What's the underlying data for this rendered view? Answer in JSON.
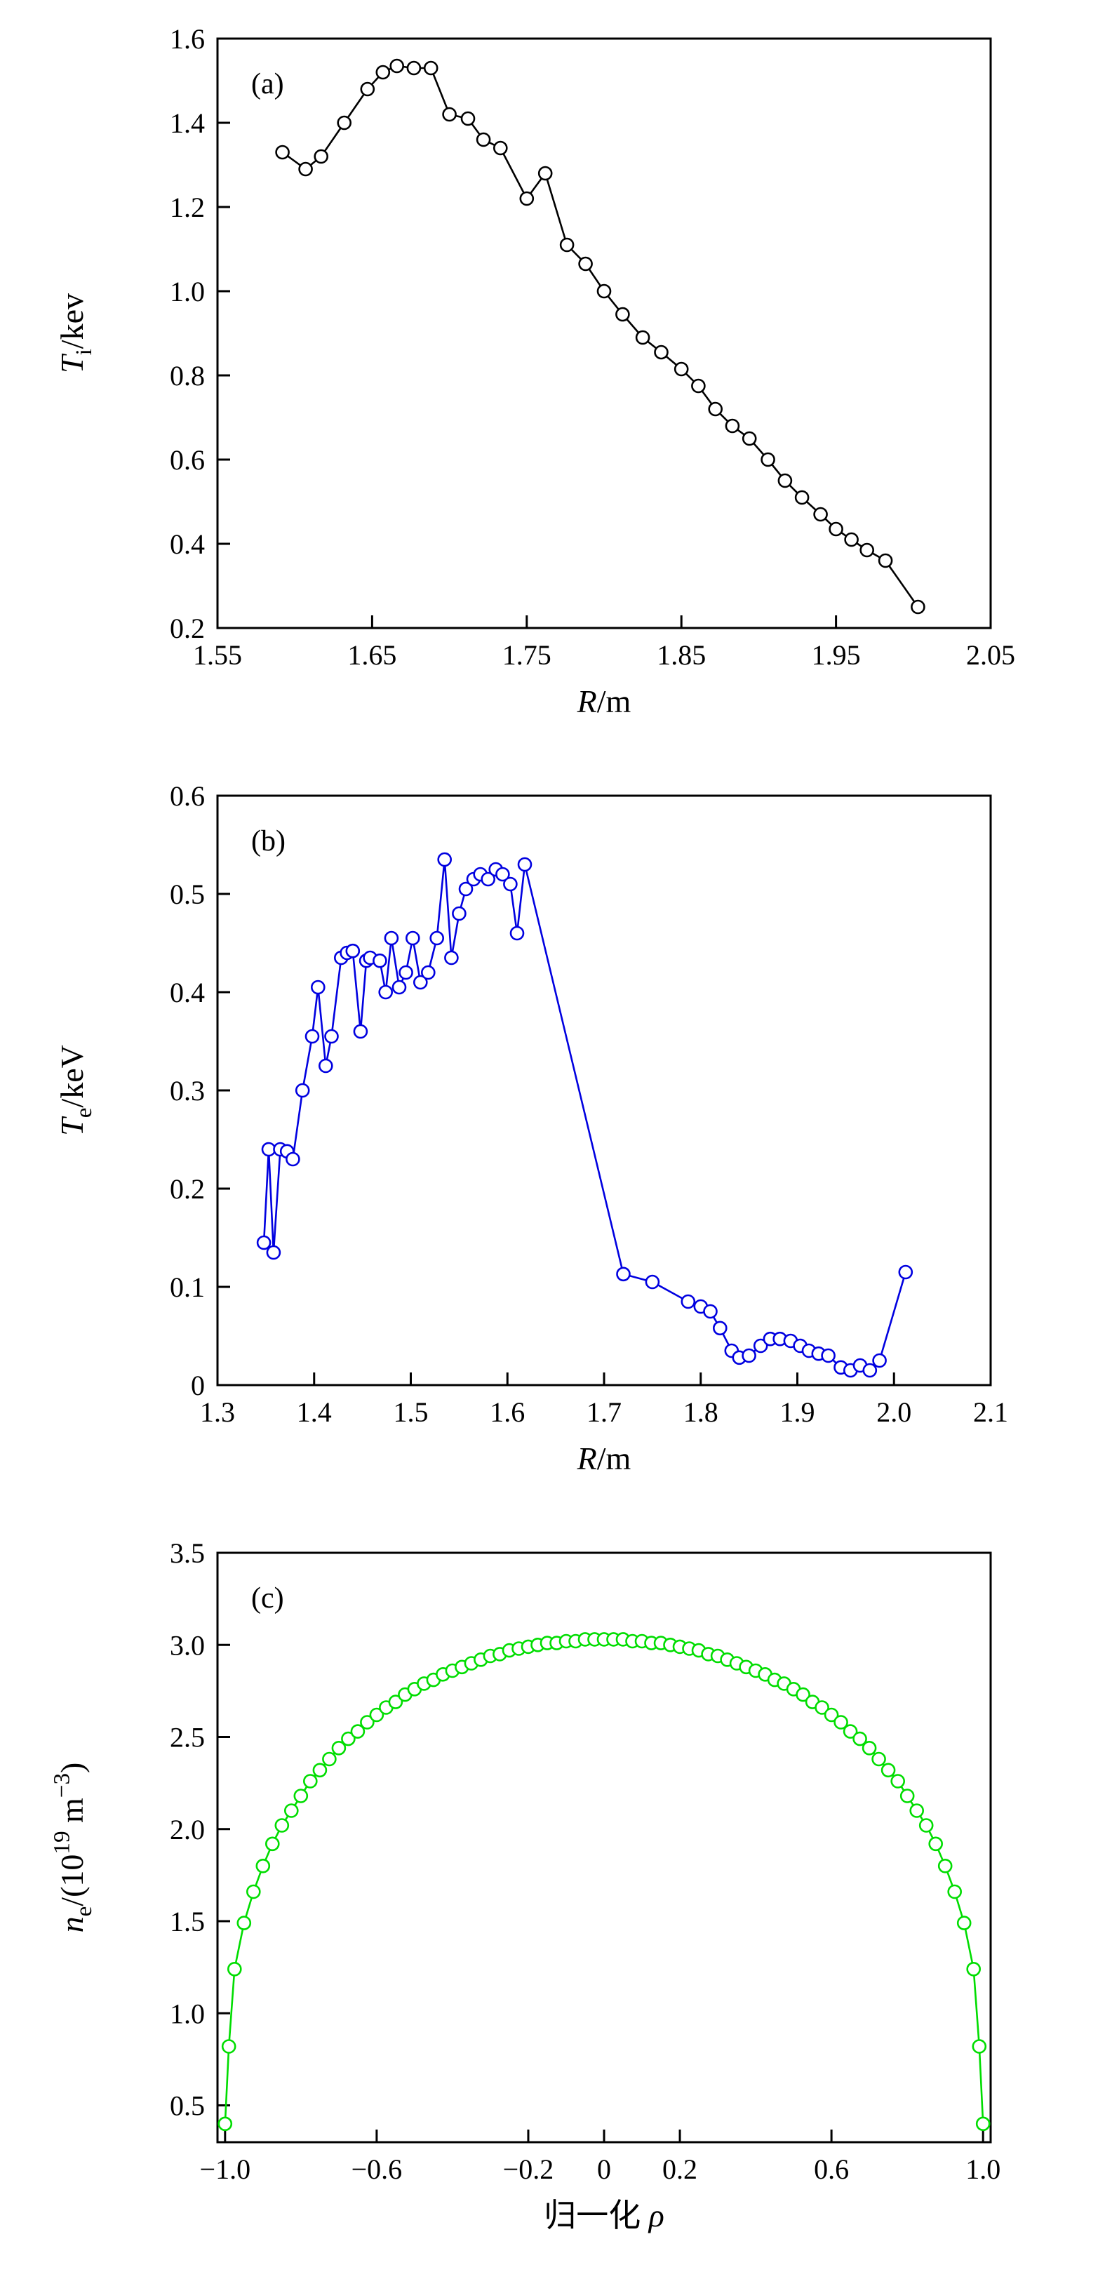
{
  "page": {
    "background": "#ffffff"
  },
  "chart_data": [
    {
      "id": "a",
      "type": "line",
      "panel_label": "(a)",
      "color": "#000000",
      "marker": "open-circle",
      "xlim": [
        1.55,
        2.05
      ],
      "ylim": [
        0.2,
        1.6
      ],
      "xticks": {
        "values": [
          1.55,
          1.65,
          1.75,
          1.85,
          1.95,
          2.05
        ],
        "labels": [
          "1.55",
          "1.65",
          "1.75",
          "1.85",
          "1.95",
          "2.05"
        ]
      },
      "yticks": {
        "values": [
          0.2,
          0.4,
          0.6,
          0.8,
          1.0,
          1.2,
          1.4,
          1.6
        ],
        "labels": [
          "0.2",
          "0.4",
          "0.6",
          "0.8",
          "1.0",
          "1.2",
          "1.4",
          "1.6"
        ]
      },
      "xlabel_segments": [
        {
          "t": "R",
          "style": "italic"
        },
        {
          "t": "/m",
          "style": "normal"
        }
      ],
      "ylabel_segments": [
        {
          "t": "T",
          "style": "italic"
        },
        {
          "t": "i",
          "style": "sub"
        },
        {
          "t": "/kev",
          "style": "normal"
        }
      ],
      "points": [
        [
          1.592,
          1.33
        ],
        [
          1.607,
          1.29
        ],
        [
          1.617,
          1.32
        ],
        [
          1.632,
          1.4
        ],
        [
          1.647,
          1.48
        ],
        [
          1.657,
          1.52
        ],
        [
          1.666,
          1.535
        ],
        [
          1.677,
          1.53
        ],
        [
          1.688,
          1.53
        ],
        [
          1.7,
          1.42
        ],
        [
          1.712,
          1.41
        ],
        [
          1.722,
          1.36
        ],
        [
          1.733,
          1.34
        ],
        [
          1.75,
          1.22
        ],
        [
          1.762,
          1.28
        ],
        [
          1.776,
          1.11
        ],
        [
          1.788,
          1.065
        ],
        [
          1.8,
          1.0
        ],
        [
          1.812,
          0.945
        ],
        [
          1.825,
          0.89
        ],
        [
          1.837,
          0.855
        ],
        [
          1.85,
          0.815
        ],
        [
          1.861,
          0.775
        ],
        [
          1.872,
          0.72
        ],
        [
          1.883,
          0.68
        ],
        [
          1.894,
          0.65
        ],
        [
          1.906,
          0.6
        ],
        [
          1.917,
          0.55
        ],
        [
          1.928,
          0.51
        ],
        [
          1.94,
          0.47
        ],
        [
          1.95,
          0.435
        ],
        [
          1.96,
          0.41
        ],
        [
          1.97,
          0.385
        ],
        [
          1.982,
          0.36
        ],
        [
          2.003,
          0.25
        ]
      ]
    },
    {
      "id": "b",
      "type": "line",
      "panel_label": "(b)",
      "color": "#0000e0",
      "marker": "open-circle",
      "xlim": [
        1.3,
        2.1
      ],
      "ylim": [
        0,
        0.6
      ],
      "xticks": {
        "values": [
          1.3,
          1.4,
          1.5,
          1.6,
          1.7,
          1.8,
          1.9,
          2.0,
          2.1
        ],
        "labels": [
          "1.3",
          "1.4",
          "1.5",
          "1.6",
          "1.7",
          "1.8",
          "1.9",
          "2.0",
          "2.1"
        ]
      },
      "yticks": {
        "values": [
          0,
          0.1,
          0.2,
          0.3,
          0.4,
          0.5,
          0.6
        ],
        "labels": [
          "0",
          "0.1",
          "0.2",
          "0.3",
          "0.4",
          "0.5",
          "0.6"
        ]
      },
      "xlabel_segments": [
        {
          "t": "R",
          "style": "italic"
        },
        {
          "t": "/m",
          "style": "normal"
        }
      ],
      "ylabel_segments": [
        {
          "t": "T",
          "style": "italic"
        },
        {
          "t": "e",
          "style": "sub"
        },
        {
          "t": "/keV",
          "style": "normal"
        }
      ],
      "points": [
        [
          1.348,
          0.145
        ],
        [
          1.353,
          0.24
        ],
        [
          1.358,
          0.135
        ],
        [
          1.365,
          0.24
        ],
        [
          1.372,
          0.238
        ],
        [
          1.378,
          0.23
        ],
        [
          1.388,
          0.3
        ],
        [
          1.398,
          0.355
        ],
        [
          1.404,
          0.405
        ],
        [
          1.412,
          0.325
        ],
        [
          1.418,
          0.355
        ],
        [
          1.428,
          0.435
        ],
        [
          1.434,
          0.44
        ],
        [
          1.44,
          0.442
        ],
        [
          1.448,
          0.36
        ],
        [
          1.454,
          0.432
        ],
        [
          1.458,
          0.435
        ],
        [
          1.468,
          0.432
        ],
        [
          1.474,
          0.4
        ],
        [
          1.48,
          0.455
        ],
        [
          1.488,
          0.405
        ],
        [
          1.495,
          0.42
        ],
        [
          1.502,
          0.455
        ],
        [
          1.51,
          0.41
        ],
        [
          1.518,
          0.42
        ],
        [
          1.527,
          0.455
        ],
        [
          1.535,
          0.535
        ],
        [
          1.542,
          0.435
        ],
        [
          1.55,
          0.48
        ],
        [
          1.557,
          0.505
        ],
        [
          1.565,
          0.515
        ],
        [
          1.572,
          0.52
        ],
        [
          1.58,
          0.515
        ],
        [
          1.588,
          0.525
        ],
        [
          1.595,
          0.52
        ],
        [
          1.603,
          0.51
        ],
        [
          1.61,
          0.46
        ],
        [
          1.618,
          0.53
        ],
        [
          1.72,
          0.113
        ],
        [
          1.75,
          0.105
        ],
        [
          1.787,
          0.085
        ],
        [
          1.8,
          0.08
        ],
        [
          1.81,
          0.075
        ],
        [
          1.82,
          0.058
        ],
        [
          1.832,
          0.035
        ],
        [
          1.84,
          0.028
        ],
        [
          1.85,
          0.03
        ],
        [
          1.862,
          0.04
        ],
        [
          1.872,
          0.047
        ],
        [
          1.882,
          0.047
        ],
        [
          1.893,
          0.045
        ],
        [
          1.903,
          0.04
        ],
        [
          1.912,
          0.035
        ],
        [
          1.922,
          0.032
        ],
        [
          1.932,
          0.03
        ],
        [
          1.945,
          0.018
        ],
        [
          1.955,
          0.015
        ],
        [
          1.965,
          0.02
        ],
        [
          1.975,
          0.015
        ],
        [
          1.985,
          0.025
        ],
        [
          2.012,
          0.115
        ]
      ]
    },
    {
      "id": "c",
      "type": "line",
      "panel_label": "(c)",
      "color": "#00dd00",
      "marker": "open-circle",
      "xlim": [
        -1.02,
        1.02
      ],
      "ylim": [
        0.3,
        3.5
      ],
      "xticks": {
        "values": [
          -1.0,
          -0.6,
          -0.2,
          0,
          0.2,
          0.6,
          1.0
        ],
        "labels": [
          "−1.0",
          "−0.6",
          "−0.2",
          "0",
          "0.2",
          "0.6",
          "1.0"
        ]
      },
      "yticks": {
        "values": [
          0.5,
          1.0,
          1.5,
          2.0,
          2.5,
          3.0,
          3.5
        ],
        "labels": [
          "0.5",
          "1.0",
          "1.5",
          "2.0",
          "2.5",
          "3.0",
          "3.5"
        ]
      },
      "xlabel_segments": [
        {
          "t": "归一化 ",
          "style": "normal"
        },
        {
          "t": "ρ",
          "style": "italic"
        }
      ],
      "ylabel_segments": [
        {
          "t": "n",
          "style": "italic"
        },
        {
          "t": "e",
          "style": "sub"
        },
        {
          "t": "/(10",
          "style": "normal"
        },
        {
          "t": "19",
          "style": "sup"
        },
        {
          "t": " m",
          "style": "normal"
        },
        {
          "t": "−3",
          "style": "sup"
        },
        {
          "t": ")",
          "style": "normal"
        }
      ],
      "points": [
        [
          -1.0,
          0.4
        ],
        [
          -0.99,
          0.82
        ],
        [
          -0.975,
          1.24
        ],
        [
          -0.95,
          1.49
        ],
        [
          -0.925,
          1.66
        ],
        [
          -0.9,
          1.8
        ],
        [
          -0.875,
          1.92
        ],
        [
          -0.85,
          2.02
        ],
        [
          -0.825,
          2.1
        ],
        [
          -0.8,
          2.18
        ],
        [
          -0.775,
          2.26
        ],
        [
          -0.75,
          2.32
        ],
        [
          -0.725,
          2.38
        ],
        [
          -0.7,
          2.44
        ],
        [
          -0.675,
          2.49
        ],
        [
          -0.65,
          2.53
        ],
        [
          -0.625,
          2.58
        ],
        [
          -0.6,
          2.62
        ],
        [
          -0.575,
          2.66
        ],
        [
          -0.55,
          2.69
        ],
        [
          -0.525,
          2.73
        ],
        [
          -0.5,
          2.76
        ],
        [
          -0.475,
          2.79
        ],
        [
          -0.45,
          2.81
        ],
        [
          -0.425,
          2.84
        ],
        [
          -0.4,
          2.86
        ],
        [
          -0.375,
          2.88
        ],
        [
          -0.35,
          2.9
        ],
        [
          -0.325,
          2.92
        ],
        [
          -0.3,
          2.94
        ],
        [
          -0.275,
          2.95
        ],
        [
          -0.25,
          2.97
        ],
        [
          -0.225,
          2.98
        ],
        [
          -0.2,
          2.99
        ],
        [
          -0.175,
          3.0
        ],
        [
          -0.15,
          3.01
        ],
        [
          -0.125,
          3.01
        ],
        [
          -0.1,
          3.02
        ],
        [
          -0.075,
          3.02
        ],
        [
          -0.05,
          3.03
        ],
        [
          -0.025,
          3.03
        ],
        [
          0.0,
          3.03
        ],
        [
          0.025,
          3.03
        ],
        [
          0.05,
          3.03
        ],
        [
          0.075,
          3.02
        ],
        [
          0.1,
          3.02
        ],
        [
          0.125,
          3.01
        ],
        [
          0.15,
          3.01
        ],
        [
          0.175,
          3.0
        ],
        [
          0.2,
          2.99
        ],
        [
          0.225,
          2.98
        ],
        [
          0.25,
          2.97
        ],
        [
          0.275,
          2.95
        ],
        [
          0.3,
          2.94
        ],
        [
          0.325,
          2.92
        ],
        [
          0.35,
          2.9
        ],
        [
          0.375,
          2.88
        ],
        [
          0.4,
          2.86
        ],
        [
          0.425,
          2.84
        ],
        [
          0.45,
          2.81
        ],
        [
          0.475,
          2.79
        ],
        [
          0.5,
          2.76
        ],
        [
          0.525,
          2.73
        ],
        [
          0.55,
          2.69
        ],
        [
          0.575,
          2.66
        ],
        [
          0.6,
          2.62
        ],
        [
          0.625,
          2.58
        ],
        [
          0.65,
          2.53
        ],
        [
          0.675,
          2.49
        ],
        [
          0.7,
          2.44
        ],
        [
          0.725,
          2.38
        ],
        [
          0.75,
          2.32
        ],
        [
          0.775,
          2.26
        ],
        [
          0.8,
          2.18
        ],
        [
          0.825,
          2.1
        ],
        [
          0.85,
          2.02
        ],
        [
          0.875,
          1.92
        ],
        [
          0.9,
          1.8
        ],
        [
          0.925,
          1.66
        ],
        [
          0.95,
          1.49
        ],
        [
          0.975,
          1.24
        ],
        [
          0.99,
          0.82
        ],
        [
          1.0,
          0.4
        ]
      ]
    }
  ]
}
